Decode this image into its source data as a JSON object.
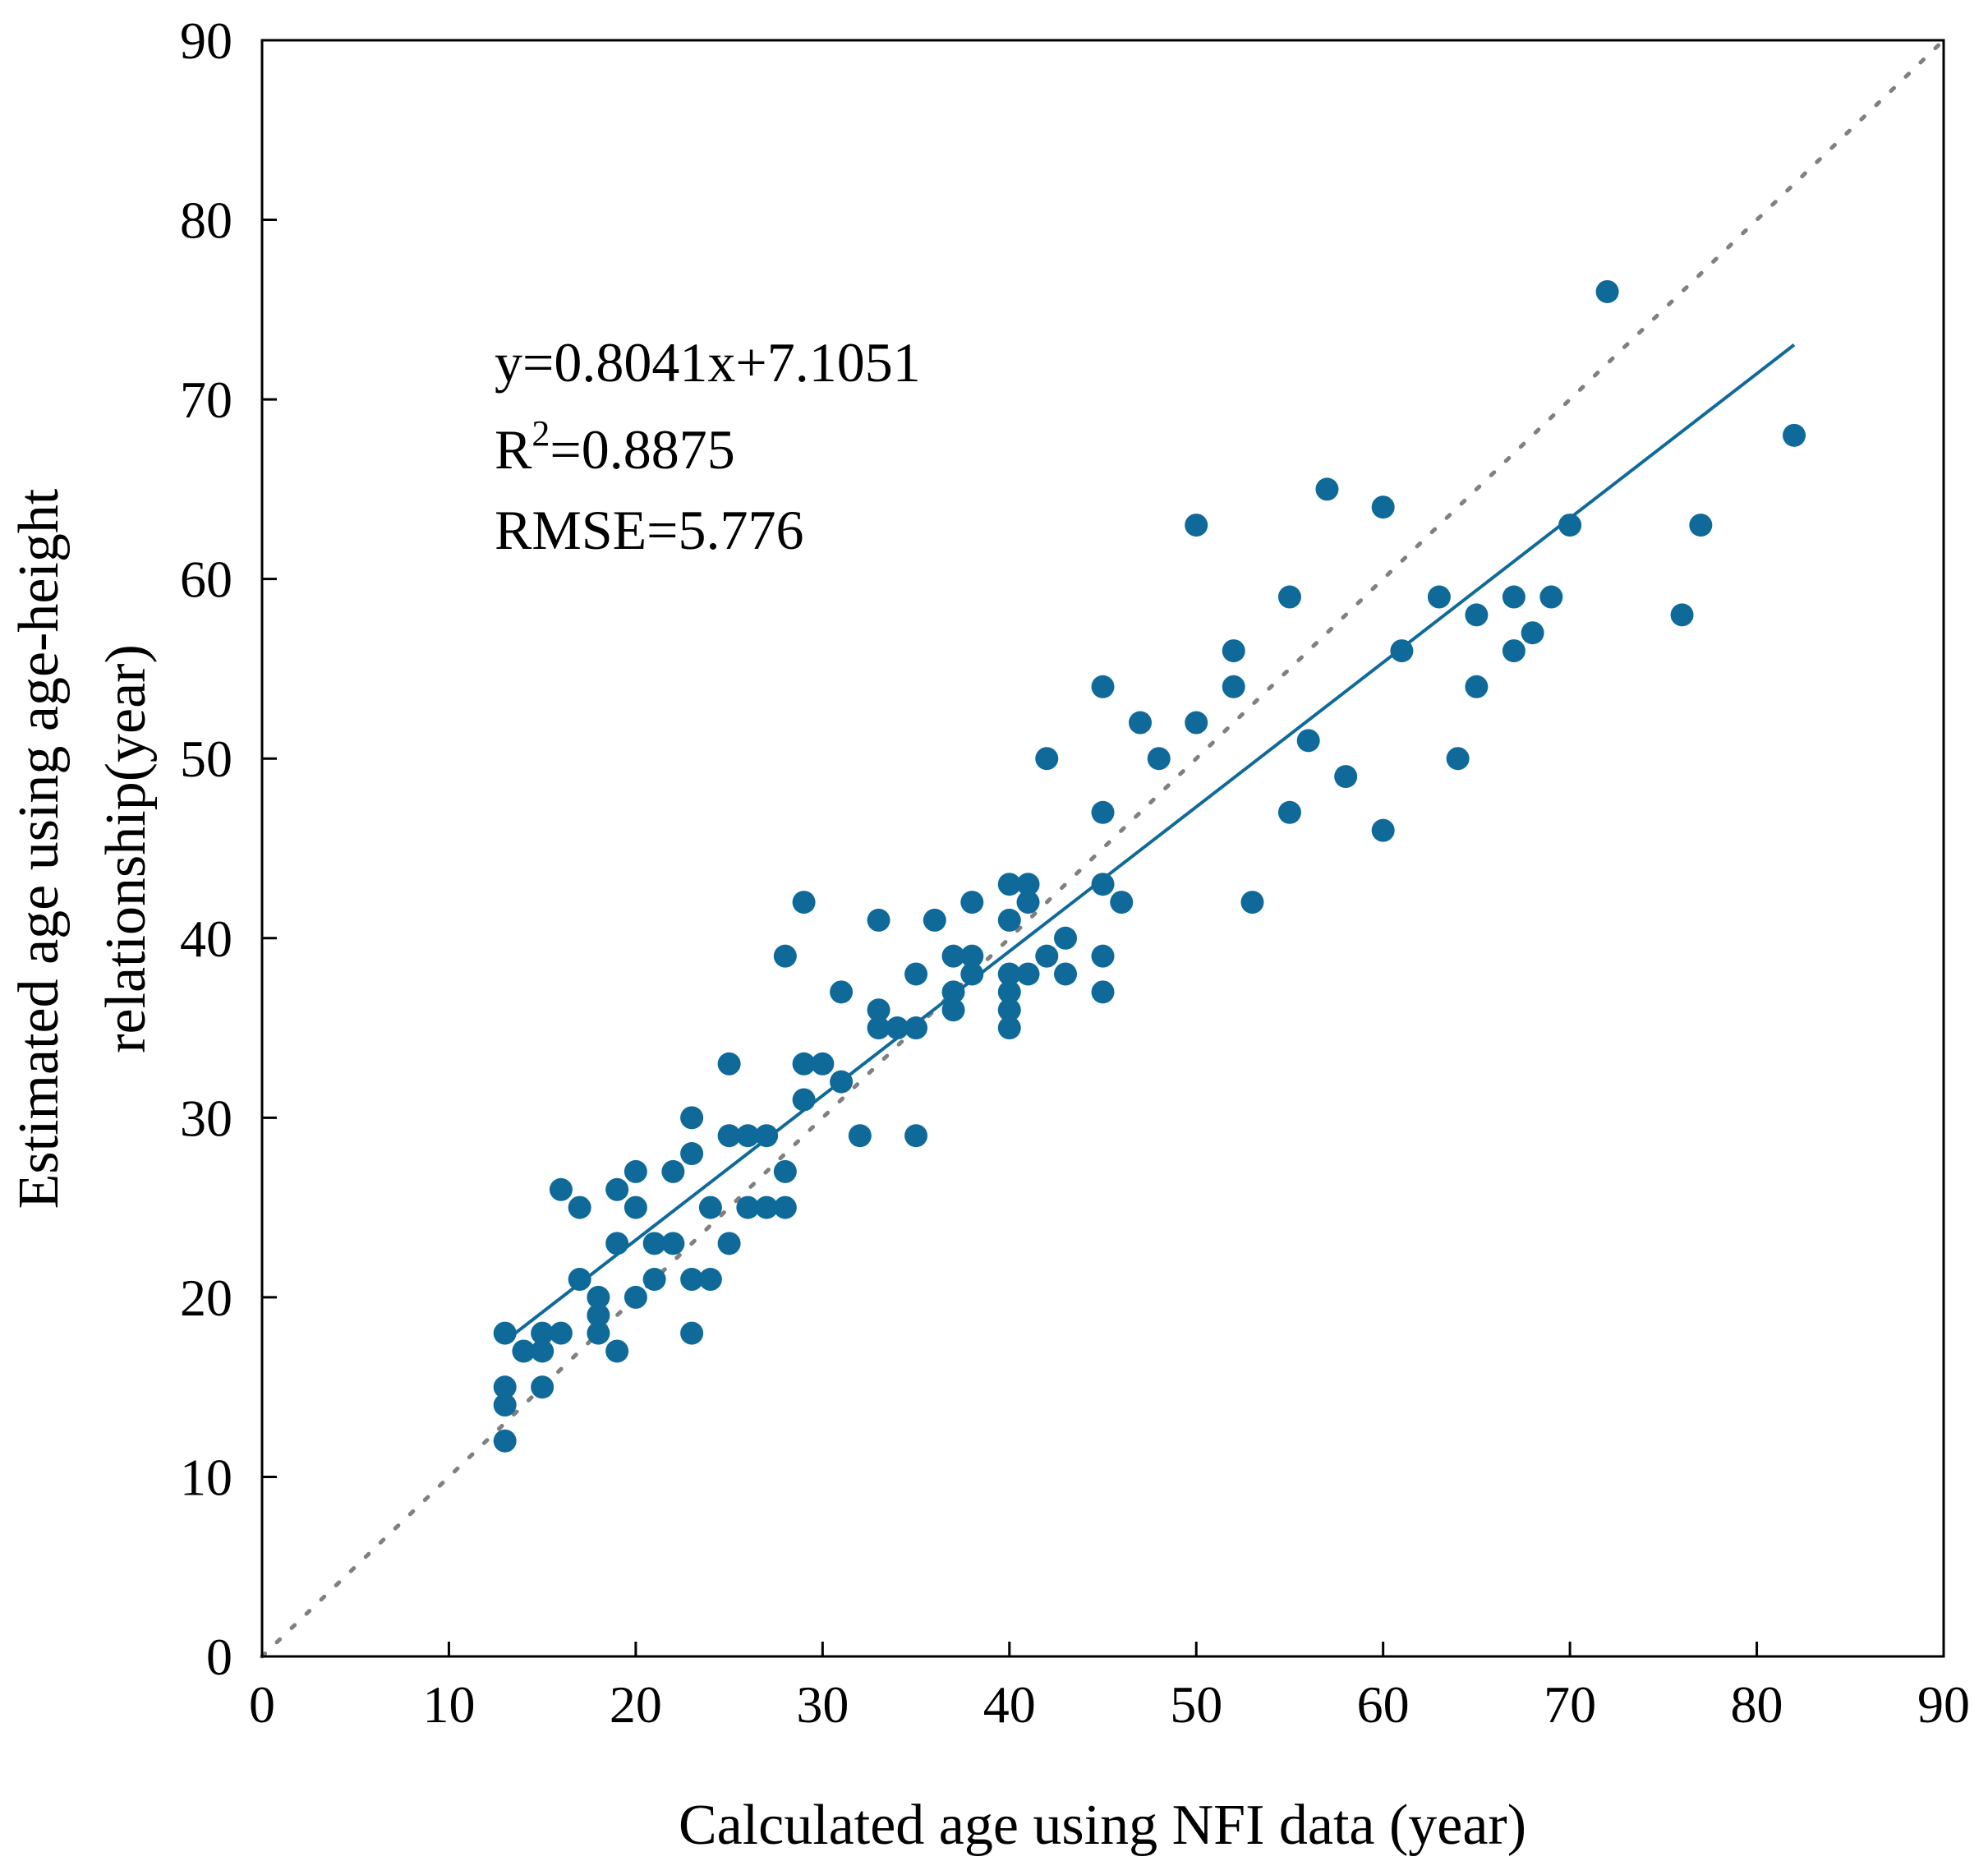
{
  "chart_data": {
    "type": "scatter",
    "title": "",
    "xlabel": "Calculated age using NFI data (year)",
    "ylabel_lines": [
      "Estimated age using age-height",
      "relationship(year)"
    ],
    "xlim": [
      0,
      90
    ],
    "ylim": [
      0,
      90
    ],
    "xticks": [
      0,
      10,
      20,
      30,
      40,
      50,
      60,
      70,
      80,
      90
    ],
    "yticks": [
      0,
      10,
      20,
      30,
      40,
      50,
      60,
      70,
      80,
      90
    ],
    "grid": false,
    "marker_color": "#0F6A99",
    "reference_line_color": "#808080",
    "regression": {
      "slope": 0.8041,
      "intercept": 7.1051,
      "x_range": [
        13,
        82
      ]
    },
    "annotations": {
      "equation": "y=0.8041x+7.1051",
      "r2_prefix": "R",
      "r2_sup": "2",
      "r2_value": "=0.8875",
      "rmse": "RMSE=5.776"
    },
    "points": [
      [
        13,
        18
      ],
      [
        13,
        15
      ],
      [
        13,
        14
      ],
      [
        13,
        12
      ],
      [
        14,
        17
      ],
      [
        15,
        18
      ],
      [
        15,
        17
      ],
      [
        15,
        15
      ],
      [
        16,
        18
      ],
      [
        16,
        26
      ],
      [
        17,
        25
      ],
      [
        17,
        21
      ],
      [
        18,
        20
      ],
      [
        18,
        19
      ],
      [
        18,
        18
      ],
      [
        19,
        26
      ],
      [
        19,
        23
      ],
      [
        19,
        17
      ],
      [
        20,
        27
      ],
      [
        20,
        25
      ],
      [
        20,
        20
      ],
      [
        21,
        23
      ],
      [
        21,
        21
      ],
      [
        22,
        27
      ],
      [
        22,
        23
      ],
      [
        23,
        30
      ],
      [
        23,
        28
      ],
      [
        23,
        21
      ],
      [
        23,
        18
      ],
      [
        24,
        25
      ],
      [
        24,
        21
      ],
      [
        25,
        33
      ],
      [
        25,
        29
      ],
      [
        25,
        23
      ],
      [
        26,
        29
      ],
      [
        26,
        25
      ],
      [
        27,
        29
      ],
      [
        27,
        25
      ],
      [
        28,
        39
      ],
      [
        28,
        27
      ],
      [
        28,
        25
      ],
      [
        29,
        42
      ],
      [
        29,
        33
      ],
      [
        29,
        31
      ],
      [
        30,
        33
      ],
      [
        31,
        37
      ],
      [
        31,
        32
      ],
      [
        32,
        29
      ],
      [
        33,
        41
      ],
      [
        33,
        36
      ],
      [
        33,
        35
      ],
      [
        34,
        35
      ],
      [
        35,
        38
      ],
      [
        35,
        35
      ],
      [
        35,
        29
      ],
      [
        36,
        41
      ],
      [
        37,
        39
      ],
      [
        37,
        37
      ],
      [
        37,
        36
      ],
      [
        38,
        42
      ],
      [
        38,
        39
      ],
      [
        38,
        38
      ],
      [
        40,
        43
      ],
      [
        40,
        41
      ],
      [
        40,
        38
      ],
      [
        40,
        37
      ],
      [
        40,
        36
      ],
      [
        40,
        35
      ],
      [
        41,
        43
      ],
      [
        41,
        42
      ],
      [
        41,
        38
      ],
      [
        42,
        50
      ],
      [
        42,
        39
      ],
      [
        43,
        40
      ],
      [
        43,
        38
      ],
      [
        45,
        54
      ],
      [
        45,
        47
      ],
      [
        45,
        43
      ],
      [
        45,
        39
      ],
      [
        45,
        37
      ],
      [
        46,
        42
      ],
      [
        47,
        52
      ],
      [
        48,
        50
      ],
      [
        50,
        63
      ],
      [
        50,
        52
      ],
      [
        52,
        56
      ],
      [
        52,
        54
      ],
      [
        53,
        42
      ],
      [
        55,
        59
      ],
      [
        55,
        47
      ],
      [
        56,
        51
      ],
      [
        57,
        65
      ],
      [
        58,
        49
      ],
      [
        60,
        64
      ],
      [
        60,
        46
      ],
      [
        61,
        56
      ],
      [
        63,
        59
      ],
      [
        64,
        50
      ],
      [
        65,
        58
      ],
      [
        65,
        54
      ],
      [
        67,
        59
      ],
      [
        67,
        56
      ],
      [
        68,
        57
      ],
      [
        69,
        59
      ],
      [
        70,
        63
      ],
      [
        72,
        76
      ],
      [
        76,
        58
      ],
      [
        77,
        63
      ],
      [
        82,
        68
      ]
    ]
  }
}
